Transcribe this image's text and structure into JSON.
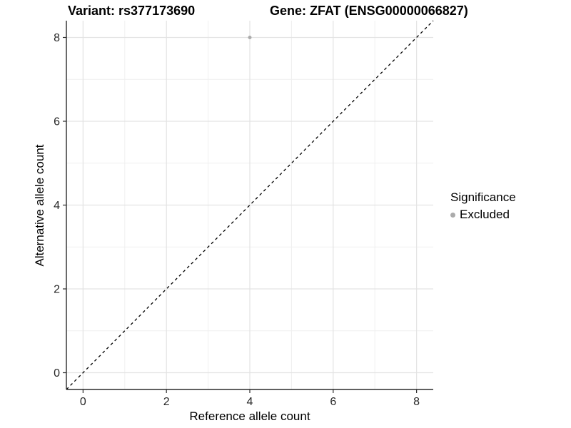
{
  "header": {
    "title_left": "Variant: rs377173690",
    "title_right": "Gene: ZFAT (ENSG00000066827)"
  },
  "chart_data": {
    "type": "scatter",
    "xlabel": "Reference allele count",
    "ylabel": "Alternative allele count",
    "xlim": [
      -0.4,
      8.4
    ],
    "ylim": [
      -0.4,
      8.4
    ],
    "x_ticks": [
      0,
      2,
      4,
      6,
      8
    ],
    "y_ticks": [
      0,
      2,
      4,
      6,
      8
    ],
    "x_minor": [
      1,
      3,
      5,
      7
    ],
    "y_minor": [
      1,
      3,
      5,
      7
    ],
    "grid": "major and minor gridlines, white panel background",
    "identity_line": {
      "label": "y = x",
      "style": "dashed",
      "color": "#000000"
    },
    "series": [
      {
        "name": "Excluded",
        "color": "#ababab",
        "points": [
          {
            "x": 4,
            "y": 8
          }
        ]
      }
    ],
    "legend": {
      "title": "Significance",
      "position": "right",
      "items": [
        {
          "label": "Excluded",
          "color": "#ababab"
        }
      ]
    }
  },
  "colors": {
    "background": "#ffffff",
    "grid_major": "#e3e3e3",
    "grid_minor": "#efefef",
    "axis_line": "#2b2b2b",
    "tick_text": "#262626",
    "title_text": "#000000",
    "point": "#ababab"
  }
}
